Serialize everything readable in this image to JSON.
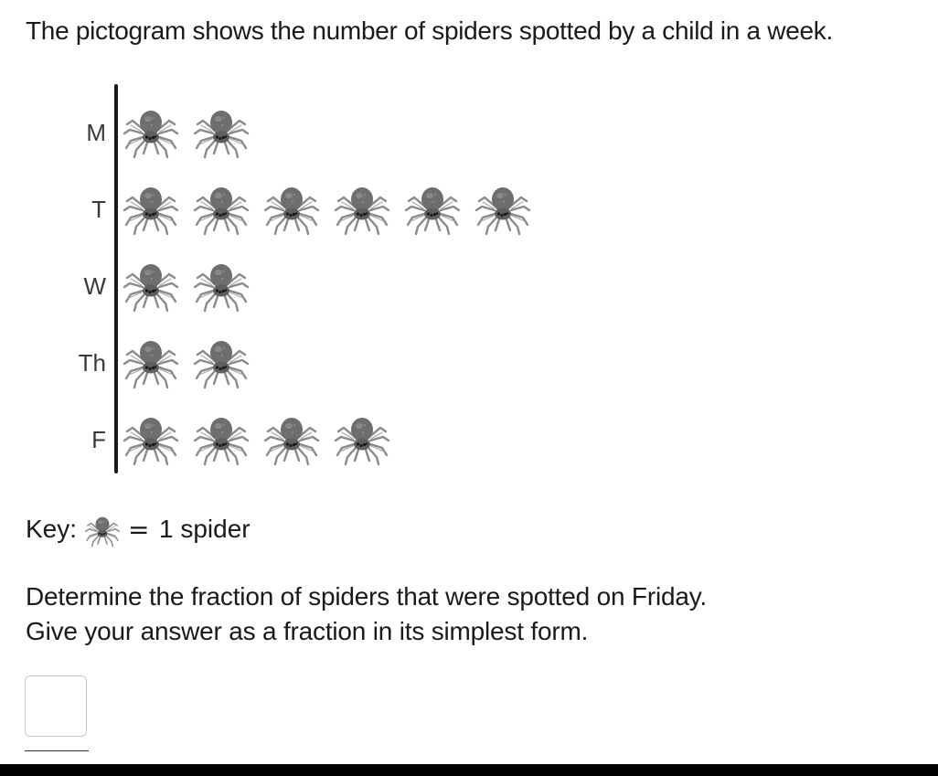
{
  "intro": "The pictogram shows the number of spiders spotted by a child in a week.",
  "pictogram": {
    "icon": "spider-icon",
    "rows": [
      {
        "day": "M",
        "count": 2
      },
      {
        "day": "T",
        "count": 6
      },
      {
        "day": "W",
        "count": 2
      },
      {
        "day": "Th",
        "count": 2
      },
      {
        "day": "F",
        "count": 4
      }
    ]
  },
  "key": {
    "label": "Key:",
    "equals": "=",
    "value": "1 spider"
  },
  "question": {
    "line1": "Determine the fraction of spiders that were spotted on Friday.",
    "line2": "Give your answer as a fraction in its simplest form."
  },
  "answer": {
    "value": ""
  }
}
